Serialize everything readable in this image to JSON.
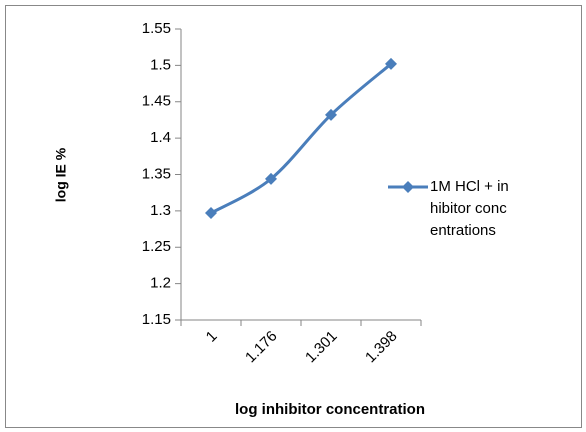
{
  "chart_data": {
    "type": "line",
    "y_label": "log IE %",
    "x_label": "log inhibitor concentration",
    "categories": [
      "1",
      "1.176",
      "1.301",
      "1.398"
    ],
    "series": [
      {
        "name": "1M HCl + inhibitor concentrations",
        "color": "#4a7ebb",
        "values": [
          1.297,
          1.344,
          1.432,
          1.502
        ]
      }
    ],
    "ylim": [
      1.15,
      1.55
    ],
    "yticks": [
      1.15,
      1.2,
      1.25,
      1.3,
      1.35,
      1.4,
      1.45,
      1.5,
      1.55
    ],
    "grid": false,
    "legend": "right"
  }
}
